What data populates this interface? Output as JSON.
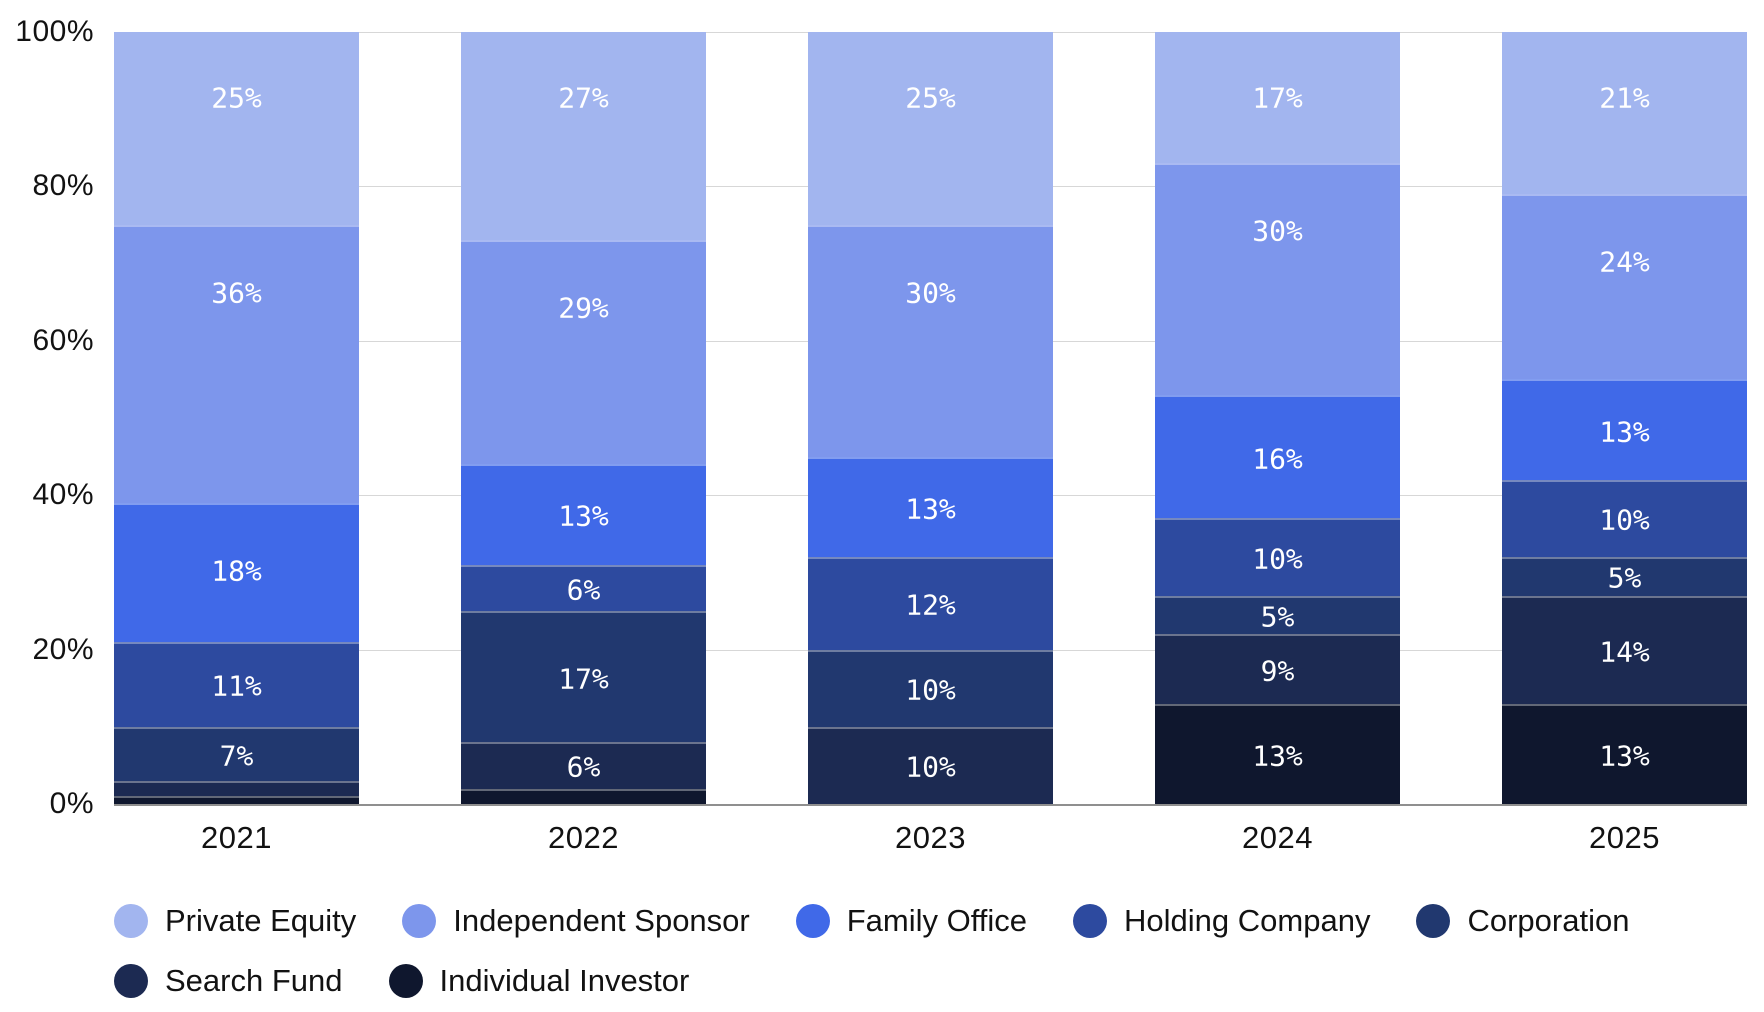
{
  "chart_data": {
    "type": "bar",
    "variant": "stacked-100-percent",
    "title": "",
    "categories": [
      "2021",
      "2022",
      "2023",
      "2024",
      "2025"
    ],
    "series": [
      {
        "name": "Private Equity",
        "color": "#a2b5ef",
        "values": [
          25,
          27,
          25,
          17,
          21
        ]
      },
      {
        "name": "Independent Sponsor",
        "color": "#7d96ec",
        "values": [
          36,
          29,
          30,
          30,
          24
        ]
      },
      {
        "name": "Family Office",
        "color": "#4069e8",
        "values": [
          18,
          13,
          13,
          16,
          13
        ]
      },
      {
        "name": "Holding Company",
        "color": "#2d4a9f",
        "values": [
          11,
          6,
          12,
          10,
          10
        ]
      },
      {
        "name": "Corporation",
        "color": "#21386f",
        "values": [
          7,
          17,
          10,
          5,
          5
        ]
      },
      {
        "name": "Search Fund",
        "color": "#1c2a52",
        "values": [
          2,
          6,
          10,
          9,
          14
        ]
      },
      {
        "name": "Individual Investor",
        "color": "#0f172e",
        "values": [
          1,
          2,
          0,
          13,
          13
        ]
      }
    ],
    "y_axis": {
      "ticks": [
        "0%",
        "20%",
        "40%",
        "60%",
        "80%",
        "100%"
      ],
      "min": 0,
      "max": 100
    },
    "x_axis": {
      "label": ""
    },
    "grid": true,
    "gridline_color": "#d7d7d7",
    "axis_line_color": "#8f8f8f",
    "data_label_color": "#ffffff",
    "data_label_suffix": "%",
    "data_label_min_pct": 5,
    "legend_position": "bottom"
  }
}
